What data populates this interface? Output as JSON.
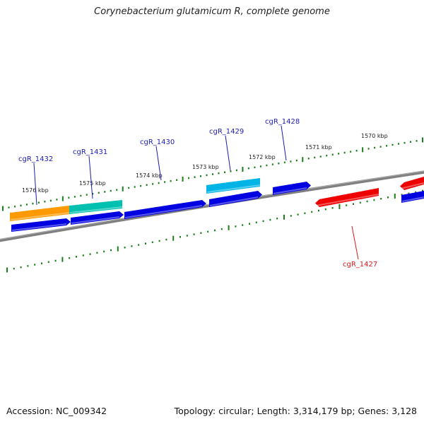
{
  "title": "Corynebacterium glutamicum R, complete genome",
  "footer": {
    "accession": "Accession: NC_009342",
    "summary": "Topology: circular; Length: 3,314,179 bp; Genes: 3,128"
  },
  "colors": {
    "backbone": "#808080",
    "tick": "#1a7f1a",
    "forward_label": "#1c1cb0",
    "reverse_label": "#d81a1a"
  },
  "scale_labels": [
    "1576 kbp",
    "1575 kbp",
    "1574 kbp",
    "1573 kbp",
    "1572 kbp",
    "1571 kbp",
    "1570 kbp"
  ],
  "gene_labels": [
    {
      "text": "cgR_1432",
      "strand": "forward"
    },
    {
      "text": "cgR_1431",
      "strand": "forward"
    },
    {
      "text": "cgR_1430",
      "strand": "forward"
    },
    {
      "text": "cgR_1429",
      "strand": "forward"
    },
    {
      "text": "cgR_1428",
      "strand": "forward"
    },
    {
      "text": "cgR_1427",
      "strand": "reverse"
    }
  ],
  "features": [
    {
      "name": "cog-orange",
      "color": "#ff9900"
    },
    {
      "name": "cog-teal",
      "color": "#00c0b0"
    },
    {
      "name": "cog-cyan",
      "color": "#00b4e6"
    },
    {
      "name": "cds-forward",
      "color": "#0000e0"
    },
    {
      "name": "cds-forward",
      "color": "#0000e0"
    },
    {
      "name": "cds-forward",
      "color": "#0000e0"
    },
    {
      "name": "cds-forward",
      "color": "#0000e0"
    },
    {
      "name": "cds-forward",
      "color": "#0000e0"
    },
    {
      "name": "cds-forward",
      "color": "#0000e0"
    },
    {
      "name": "cds-reverse",
      "color": "#ee0000"
    },
    {
      "name": "cds-reverse",
      "color": "#ee0000"
    }
  ]
}
